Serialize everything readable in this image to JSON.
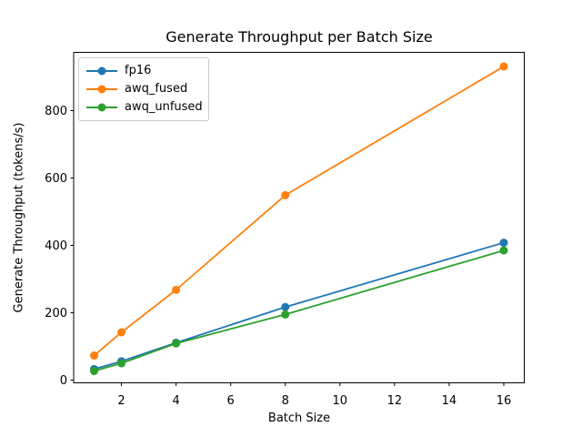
{
  "chart_data": {
    "type": "line",
    "title": "Generate Throughput per Batch Size",
    "xlabel": "Batch Size",
    "ylabel": "Generate Throughput (tokens/s)",
    "x": [
      1,
      2,
      4,
      8,
      16
    ],
    "series": [
      {
        "name": "fp16",
        "color": "#1f77b4",
        "values": [
          33,
          56,
          111,
          217,
          408
        ]
      },
      {
        "name": "awq_fused",
        "color": "#ff7f0e",
        "values": [
          73,
          142,
          268,
          549,
          931
        ]
      },
      {
        "name": "awq_unfused",
        "color": "#2ca02c",
        "values": [
          27,
          50,
          109,
          195,
          385
        ]
      }
    ],
    "xlim": [
      0.25,
      16.75
    ],
    "ylim": [
      -8,
      973
    ],
    "xticks": [
      2,
      4,
      6,
      8,
      10,
      12,
      14,
      16
    ],
    "yticks": [
      0,
      200,
      400,
      600,
      800
    ],
    "grid": false,
    "legend_position": "upper left",
    "marker": "o",
    "background": "#ffffff",
    "axes_color": "#000000"
  }
}
